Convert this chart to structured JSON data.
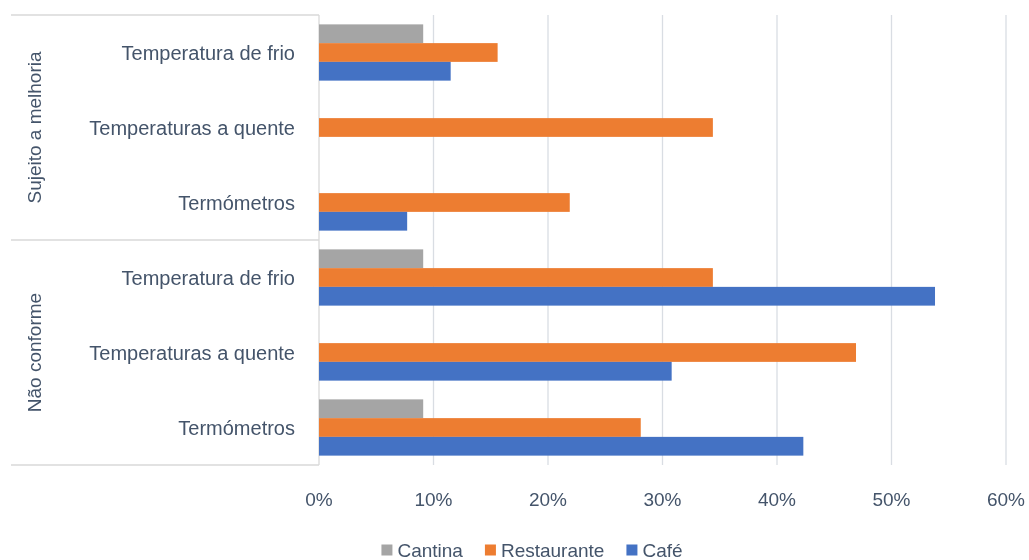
{
  "chart_data": {
    "type": "bar",
    "orientation": "horizontal",
    "categories": [
      "Temperatura de frio",
      "Temperaturas a quente",
      "Termómetros",
      "Temperatura de frio",
      "Temperaturas a quente",
      "Termómetros"
    ],
    "annotations": [
      "Sujeito a melhoria",
      "Não conforme"
    ],
    "series": [
      {
        "name": "Cantina",
        "color": "#a5a5a5",
        "values": [
          9.1,
          null,
          null,
          9.1,
          null,
          9.1
        ]
      },
      {
        "name": "Restaurante",
        "color": "#ed7d31",
        "values": [
          15.6,
          34.4,
          21.9,
          34.4,
          46.9,
          28.1
        ]
      },
      {
        "name": "Café",
        "color": "#4472c4",
        "values": [
          11.5,
          null,
          7.7,
          53.8,
          30.8,
          42.3
        ]
      }
    ],
    "xlim": [
      0,
      60
    ],
    "xticks": [
      {
        "value": 0,
        "label": "0%"
      },
      {
        "value": 10,
        "label": "10%"
      },
      {
        "value": 20,
        "label": "20%"
      },
      {
        "value": 30,
        "label": "30%"
      },
      {
        "value": 40,
        "label": "40%"
      },
      {
        "value": 50,
        "label": "50%"
      },
      {
        "value": 60,
        "label": "60%"
      }
    ],
    "grid": "x",
    "legend": "bottom"
  }
}
